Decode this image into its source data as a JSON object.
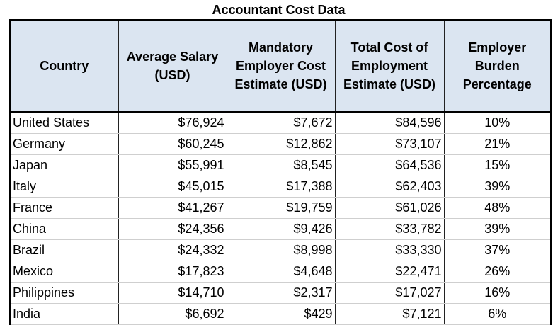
{
  "title": "Accountant Cost Data",
  "headers": [
    [
      "Country"
    ],
    [
      "Average Salary",
      "(USD)"
    ],
    [
      "Mandatory",
      "Employer Cost",
      "Estimate (USD)"
    ],
    [
      "Total Cost of",
      "Employment",
      "Estimate (USD)"
    ],
    [
      "Employer",
      "Burden",
      "Percentage"
    ]
  ],
  "rows": [
    [
      "United States",
      "$76,924",
      "$7,672",
      "$84,596",
      "10%"
    ],
    [
      "Germany",
      "$60,245",
      "$12,862",
      "$73,107",
      "21%"
    ],
    [
      "Japan",
      "$55,991",
      "$8,545",
      "$64,536",
      "15%"
    ],
    [
      "Italy",
      "$45,015",
      "$17,388",
      "$62,403",
      "39%"
    ],
    [
      "France",
      "$41,267",
      "$19,759",
      "$61,026",
      "48%"
    ],
    [
      "China",
      "$24,356",
      "$9,426",
      "$33,782",
      "39%"
    ],
    [
      "Brazil",
      "$24,332",
      "$8,998",
      "$33,330",
      "37%"
    ],
    [
      "Mexico",
      "$17,823",
      "$4,648",
      "$22,471",
      "26%"
    ],
    [
      "Philippines",
      "$14,710",
      "$2,317",
      "$17,027",
      "16%"
    ],
    [
      "India",
      "$6,692",
      "$429",
      "$7,121",
      "6%"
    ]
  ],
  "chart_data": {
    "type": "table",
    "title": "Accountant Cost Data",
    "columns": [
      "Country",
      "Average Salary (USD)",
      "Mandatory Employer Cost Estimate (USD)",
      "Total Cost of Employment Estimate (USD)",
      "Employer Burden Percentage"
    ],
    "records": [
      {
        "country": "United States",
        "average_salary": 76924,
        "mandatory_employer_cost": 7672,
        "total_cost": 84596,
        "burden_pct": 10
      },
      {
        "country": "Germany",
        "average_salary": 60245,
        "mandatory_employer_cost": 12862,
        "total_cost": 73107,
        "burden_pct": 21
      },
      {
        "country": "Japan",
        "average_salary": 55991,
        "mandatory_employer_cost": 8545,
        "total_cost": 64536,
        "burden_pct": 15
      },
      {
        "country": "Italy",
        "average_salary": 45015,
        "mandatory_employer_cost": 17388,
        "total_cost": 62403,
        "burden_pct": 39
      },
      {
        "country": "France",
        "average_salary": 41267,
        "mandatory_employer_cost": 19759,
        "total_cost": 61026,
        "burden_pct": 48
      },
      {
        "country": "China",
        "average_salary": 24356,
        "mandatory_employer_cost": 9426,
        "total_cost": 33782,
        "burden_pct": 39
      },
      {
        "country": "Brazil",
        "average_salary": 24332,
        "mandatory_employer_cost": 8998,
        "total_cost": 33330,
        "burden_pct": 37
      },
      {
        "country": "Mexico",
        "average_salary": 17823,
        "mandatory_employer_cost": 4648,
        "total_cost": 22471,
        "burden_pct": 26
      },
      {
        "country": "Philippines",
        "average_salary": 14710,
        "mandatory_employer_cost": 2317,
        "total_cost": 17027,
        "burden_pct": 16
      },
      {
        "country": "India",
        "average_salary": 6692,
        "mandatory_employer_cost": 429,
        "total_cost": 7121,
        "burden_pct": 6
      }
    ]
  },
  "colors": {
    "header_bg": "#dbe5f1",
    "border": "#000000",
    "row_divider": "#cfcfcf"
  }
}
